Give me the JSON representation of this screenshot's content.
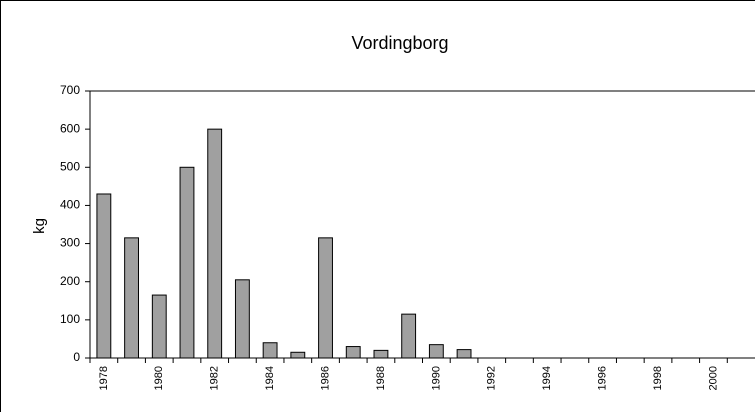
{
  "chart_data": {
    "type": "bar",
    "title": "Vordingborg",
    "y_label": "kg",
    "categories": [
      "1978",
      null,
      "1980",
      null,
      "1982",
      null,
      "1984",
      null,
      "1986",
      null,
      "1988",
      null,
      "1990",
      null,
      "1992",
      null,
      "1994",
      null,
      "1996",
      null,
      "1998",
      null,
      "2000",
      null
    ],
    "values": [
      430,
      315,
      165,
      500,
      600,
      205,
      40,
      15,
      315,
      30,
      20,
      115,
      35,
      22,
      null,
      null,
      null,
      null,
      null,
      null,
      null,
      null,
      null,
      null
    ],
    "color": "#a0a0a0",
    "ylim": [
      0,
      700
    ],
    "yticks": [
      0,
      100,
      200,
      300,
      400,
      500,
      600,
      700
    ],
    "grid": false
  }
}
